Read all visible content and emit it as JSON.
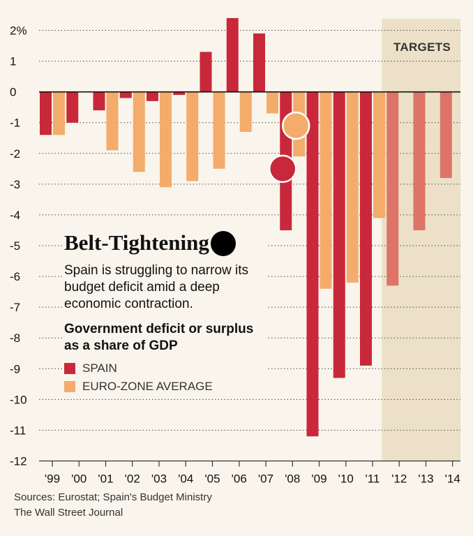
{
  "chart_data": {
    "type": "bar",
    "title": "Belt-Tightening",
    "subtitle": "Spain is struggling to narrow its budget deficit amid a deep economic contraction.",
    "measure": "Government deficit or surplus as a share of GDP",
    "categories": [
      "'99",
      "'00",
      "'01",
      "'02",
      "'03",
      "'04",
      "'05",
      "'06",
      "'07",
      "'08",
      "'09",
      "'10",
      "'11",
      "'12",
      "'13",
      "'14"
    ],
    "series": [
      {
        "name": "SPAIN",
        "color": "#c8283a",
        "target_color": "#dd7467",
        "values": [
          -1.4,
          -1.0,
          -0.6,
          -0.2,
          -0.3,
          -0.1,
          1.3,
          2.4,
          1.9,
          -4.5,
          -11.2,
          -9.3,
          -8.9,
          -6.3,
          -4.5,
          -2.8
        ]
      },
      {
        "name": "EURO-ZONE AVERAGE",
        "color": "#f3ac6b",
        "values": [
          -1.4,
          null,
          -1.9,
          -2.6,
          -3.1,
          -2.9,
          -2.5,
          -1.3,
          -0.7,
          -2.1,
          -6.4,
          -6.2,
          -4.1,
          null,
          null,
          null
        ]
      }
    ],
    "y_ticks": [
      "2%",
      "1",
      "0",
      "-1",
      "-2",
      "-3",
      "-4",
      "-5",
      "-6",
      "-7",
      "-8",
      "-9",
      "-10",
      "-11",
      "-12"
    ],
    "ylim": [
      -12,
      2
    ],
    "grid": true,
    "target_label": "TARGETS",
    "target_categories": [
      "'12",
      "'13",
      "'14"
    ],
    "target_band_color": "#ece1c8",
    "markers": [
      {
        "name": "spain-2008-marker",
        "category": "'08",
        "value": -2.5,
        "color": "#c8283a"
      },
      {
        "name": "eurozone-2008-marker",
        "category": "'08",
        "value": -1.1,
        "color": "#f3ac6b"
      }
    ],
    "source": "Sources: Eurostat; Spain's Budget Ministry",
    "credit": "The Wall Street Journal"
  }
}
